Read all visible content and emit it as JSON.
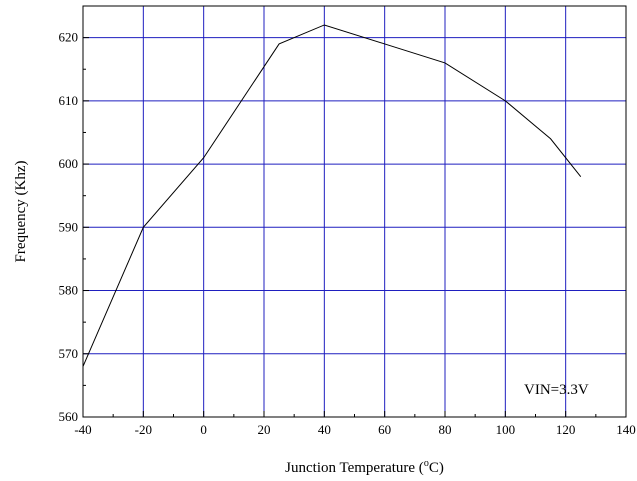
{
  "chart_data": {
    "type": "line",
    "title": "",
    "xlabel": "Junction Temperature (",
    "xlabel_sup": "o",
    "xlabel_suffix": "C)",
    "ylabel": "Frequency (Khz)",
    "xlim": [
      -40,
      140
    ],
    "ylim": [
      560,
      625
    ],
    "xticks": [
      -40,
      -20,
      0,
      20,
      40,
      60,
      80,
      100,
      120,
      140
    ],
    "yticks": [
      560,
      570,
      580,
      590,
      600,
      610,
      620
    ],
    "grid": true,
    "grid_color": "#1f1fbf",
    "line_color": "#000000",
    "series": [
      {
        "x": [
          -40,
          -20,
          0,
          25,
          40,
          60,
          80,
          100,
          115,
          125
        ],
        "y": [
          568,
          590,
          601,
          619,
          622,
          619,
          616,
          610,
          604,
          598
        ]
      }
    ],
    "annotations": [
      {
        "text": "VIN=3.3V"
      }
    ]
  }
}
